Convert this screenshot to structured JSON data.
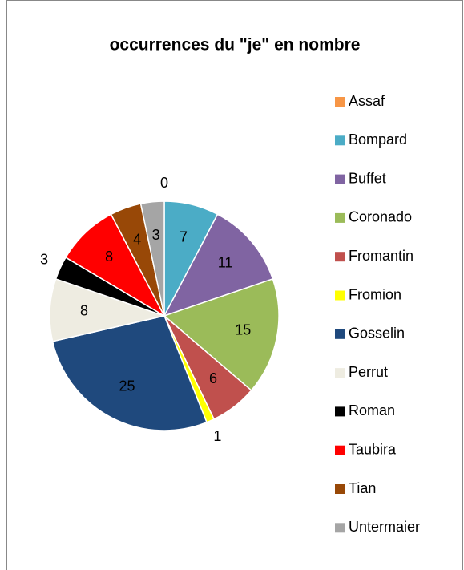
{
  "chart_data": {
    "type": "pie",
    "title": "occurrences du \"je\" en nombre",
    "categories": [
      "Assaf",
      "Bompard",
      "Buffet",
      "Coronado",
      "Fromantin",
      "Fromion",
      "Gosselin",
      "Perrut",
      "Roman",
      "Taubira",
      "Tian",
      "Untermaier"
    ],
    "values": [
      0,
      7,
      11,
      15,
      6,
      1,
      25,
      8,
      3,
      8,
      4,
      3
    ],
    "colors": [
      "#f79646",
      "#4bacc6",
      "#8064a2",
      "#9bbb59",
      "#c0504d",
      "#ffff00",
      "#1f497d",
      "#eeece1",
      "#000000",
      "#ff0000",
      "#984807",
      "#a5a5a5"
    ],
    "legend": "right"
  }
}
